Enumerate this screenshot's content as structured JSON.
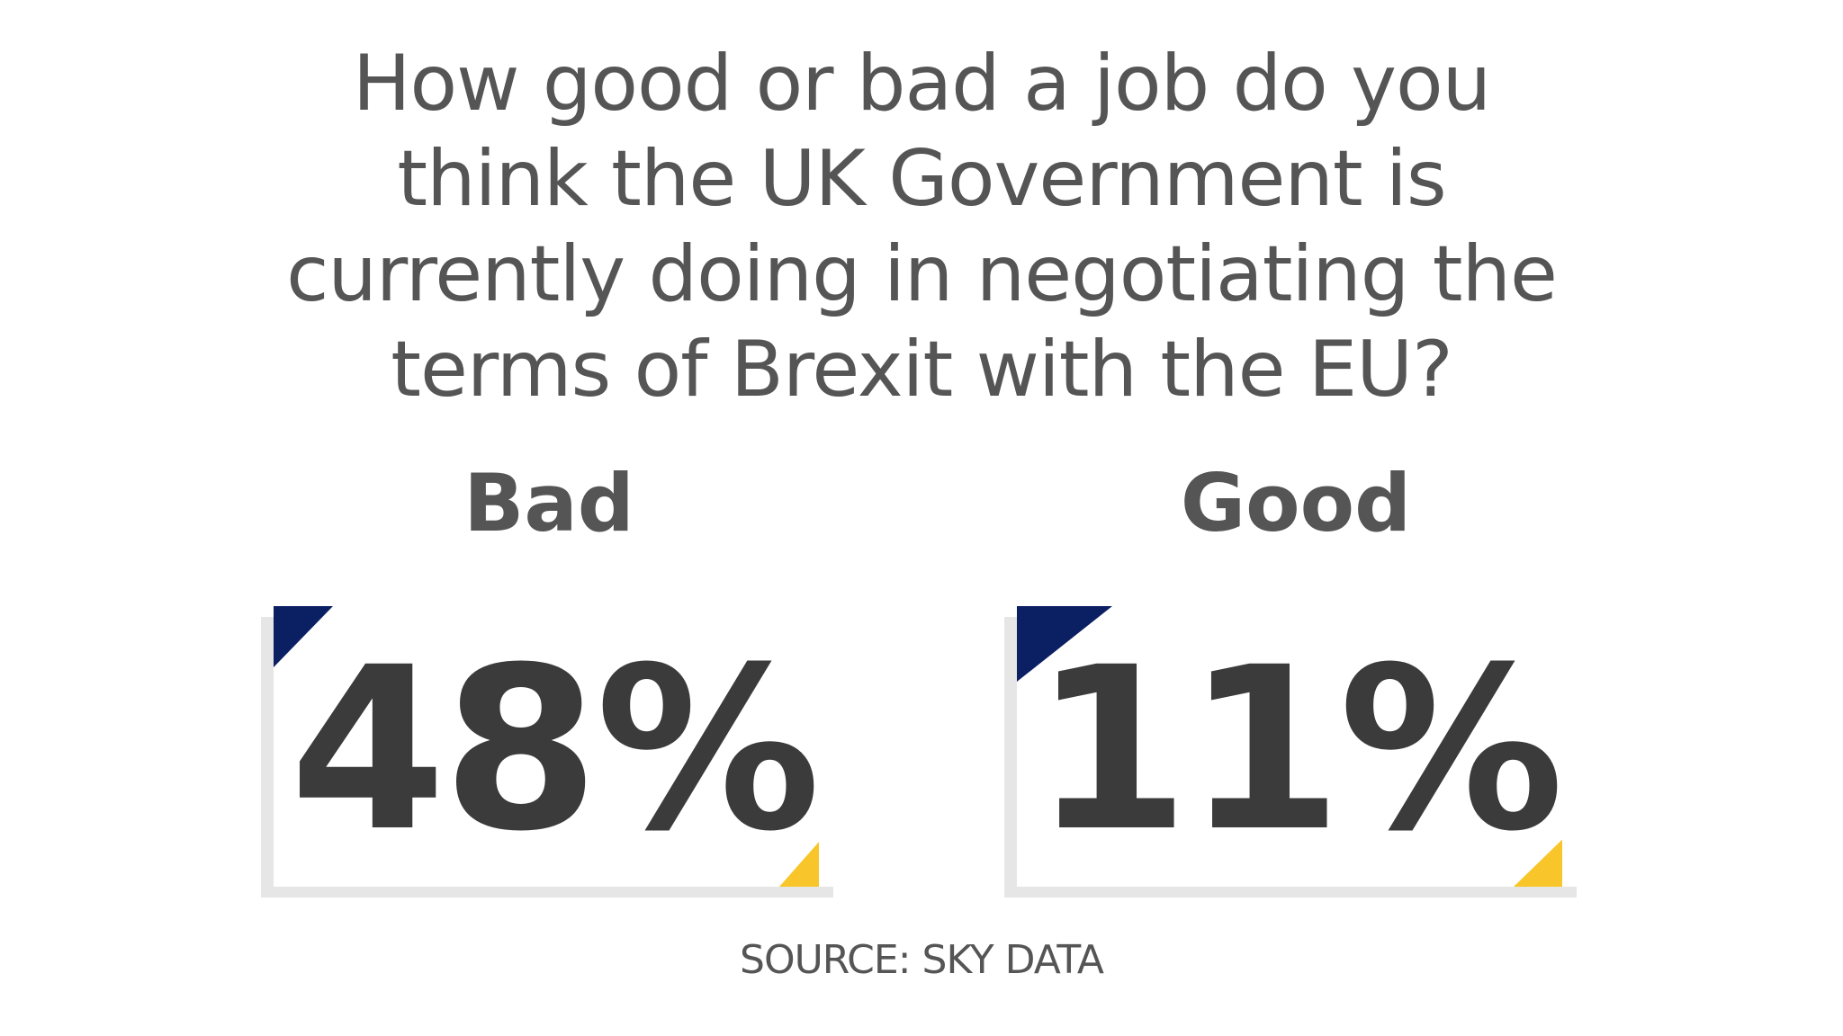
{
  "chart_data": {
    "type": "table",
    "title_lines": [
      "How good or bad a job do you",
      "think the UK Government is",
      "currently doing in negotiating the",
      "terms of Brexit with the EU?"
    ],
    "categories": [
      "Bad",
      "Good"
    ],
    "value_labels": [
      "48%",
      "11%"
    ],
    "values": [
      48,
      11
    ],
    "source": "SOURCE: SKY DATA"
  },
  "colors": {
    "navy_accent": "#0b1f63",
    "yellow_accent": "#f8c62a",
    "text_dark": "#3b3b3b",
    "text_mid": "#555555",
    "card_shadow": "#e6e6e6"
  }
}
